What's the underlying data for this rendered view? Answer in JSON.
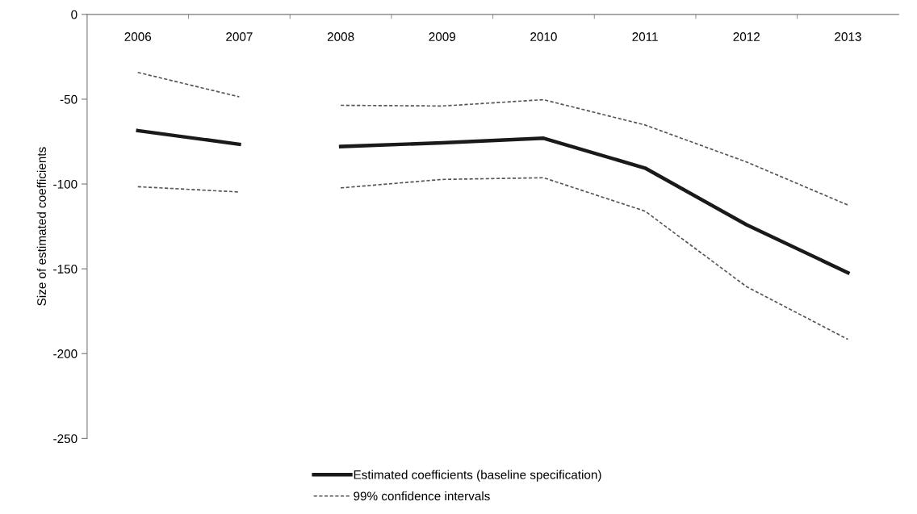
{
  "chart_data": {
    "type": "line",
    "ylabel": "Size of estimated coefficients",
    "categories": [
      "2006",
      "2007",
      "2008",
      "2009",
      "2010",
      "2011",
      "2012",
      "2013"
    ],
    "series": [
      {
        "name": "Estimated coefficients (baseline specification)",
        "color": "#1a1a1a",
        "line_style": "solid",
        "values": [
          -68.5,
          -76.6,
          null,
          null,
          null,
          null,
          null,
          null
        ]
      },
      {
        "color": "#1a1a1a",
        "line_style": "solid",
        "values": [
          null,
          null,
          -77.9,
          -75.7,
          -73,
          -90.6,
          -124,
          -152.3
        ]
      },
      {
        "name": "99% confidence intervals",
        "color": "#555555",
        "line_style": "dashed",
        "values": [
          -34.2,
          -48.6,
          null,
          null,
          null,
          null,
          null,
          null
        ]
      },
      {
        "color": "#555555",
        "line_style": "dashed",
        "values": [
          null,
          null,
          -53.6,
          -54,
          -50.3,
          -65.2,
          -87,
          -112.4
        ]
      },
      {
        "color": "#555555",
        "line_style": "dashed",
        "values": [
          -101.6,
          -104.7,
          null,
          null,
          null,
          null,
          null,
          null
        ]
      },
      {
        "color": "#555555",
        "line_style": "dashed",
        "values": [
          null,
          null,
          -102.3,
          -97.3,
          -96.3,
          -116,
          -160.5,
          -191.6
        ]
      }
    ],
    "ylim": [
      -250,
      0
    ],
    "yticks": [
      -250,
      -200,
      -150,
      -100,
      -50,
      0
    ],
    "grid": false,
    "legend": "bottom",
    "marker": "none"
  }
}
